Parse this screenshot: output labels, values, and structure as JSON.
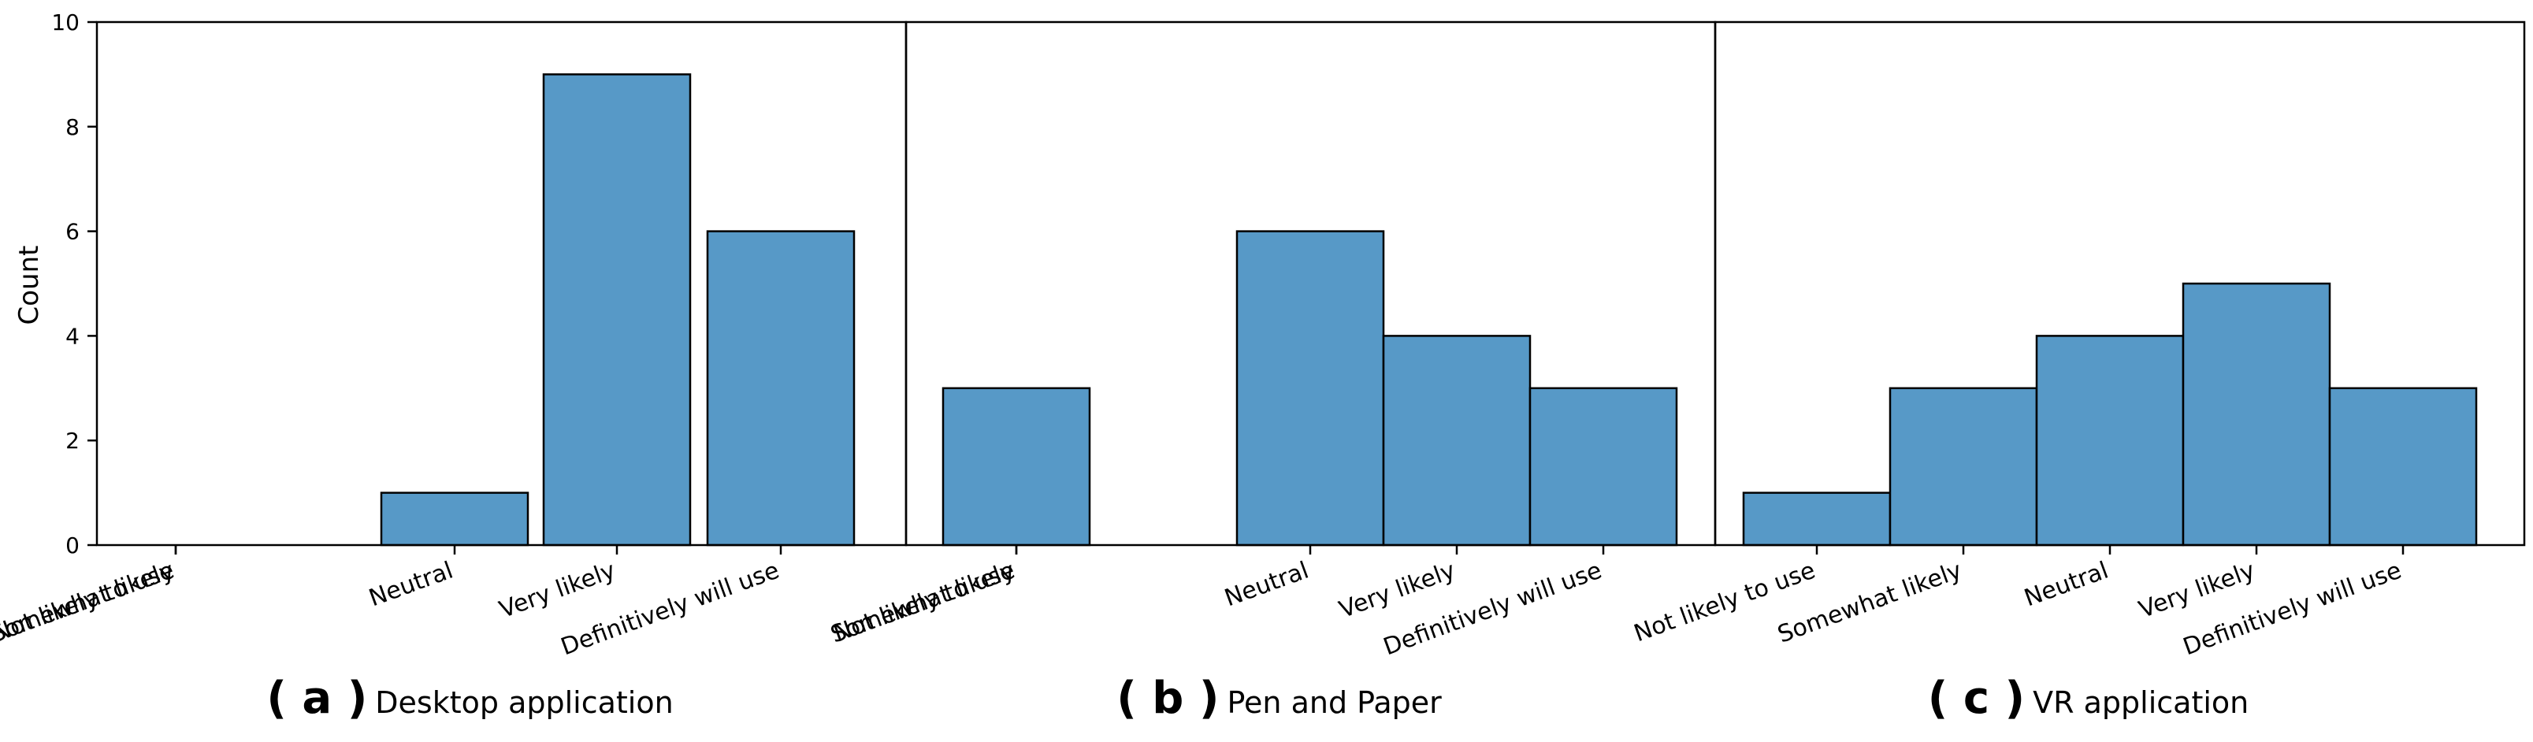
{
  "chart_data": {
    "type": "bar",
    "ylabel": "Count",
    "ylim": [
      0,
      10
    ],
    "yticks": [
      0,
      2,
      4,
      6,
      8,
      10
    ],
    "bar_color": "#5799c7",
    "edge_color": "#000000",
    "panels": [
      {
        "caption_letter": "( a )",
        "caption_text": "Desktop application",
        "categories": [
          "Not likely to use",
          "Somewhat likely",
          "Neutral",
          "Very likely",
          "Definitively will use"
        ],
        "values": [
          0,
          0,
          1,
          9,
          6
        ]
      },
      {
        "caption_letter": "( b )",
        "caption_text": "Pen and Paper",
        "categories": [
          "Not likely to use",
          "Somewhat likely",
          "Neutral",
          "Very likely",
          "Definitively will use"
        ],
        "values": [
          3,
          0,
          6,
          4,
          3
        ]
      },
      {
        "caption_letter": "( c )",
        "caption_text": "VR application",
        "categories": [
          "Not likely to use",
          "Somewhat likely",
          "Neutral",
          "Very likely",
          "Definitively will use"
        ],
        "values": [
          1,
          3,
          4,
          5,
          3
        ]
      }
    ]
  }
}
